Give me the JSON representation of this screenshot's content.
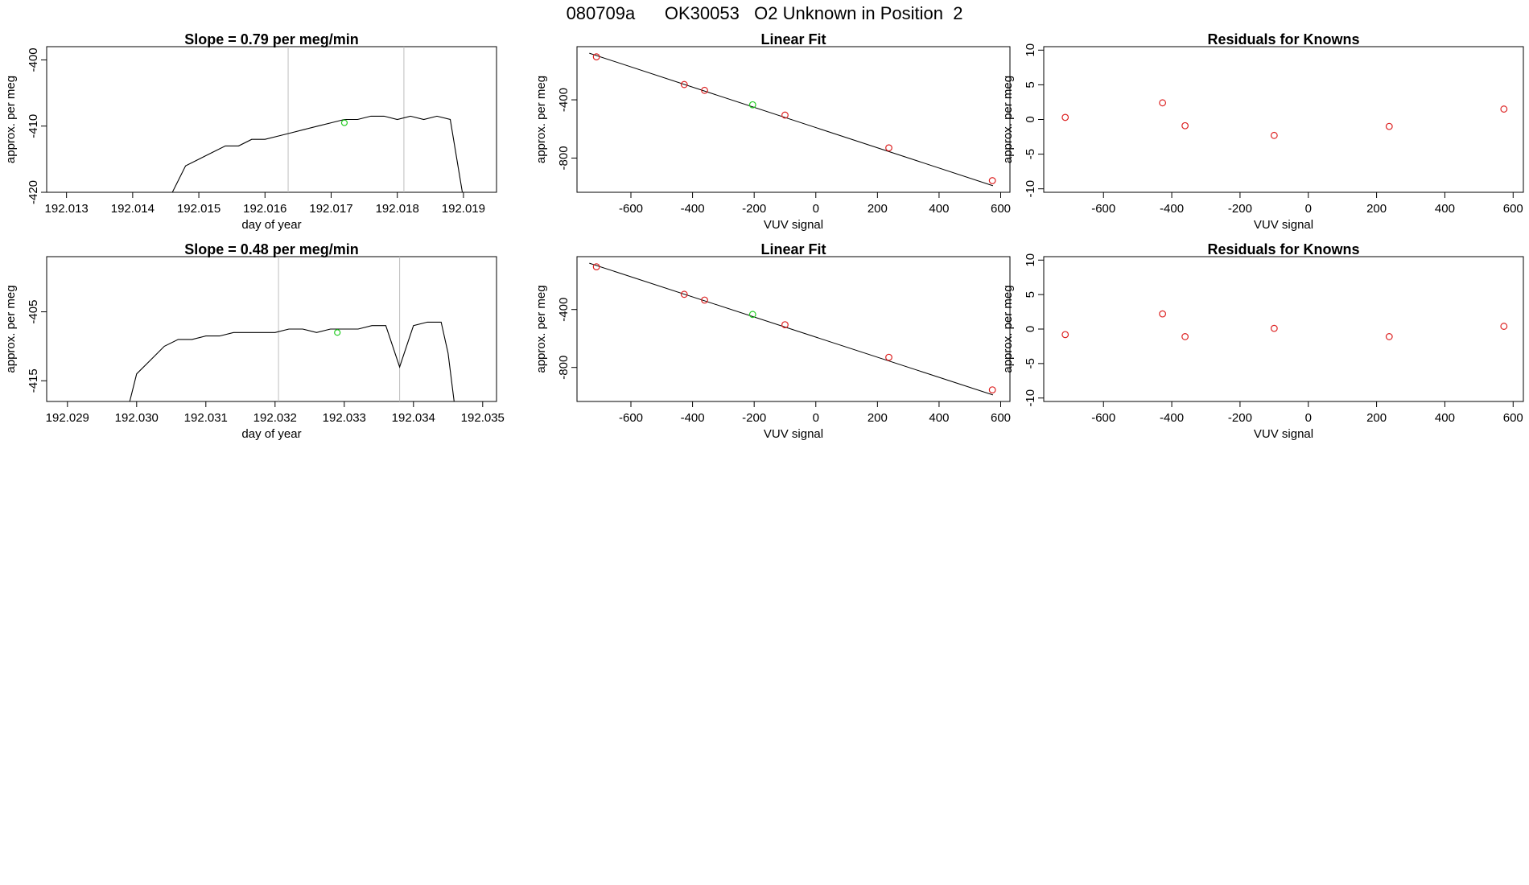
{
  "page_title": "080709a      OK30053   O2 Unknown in Position  2",
  "colors": {
    "line": "#000000",
    "frame": "#000000",
    "vline": "#bebebe",
    "known": "#dd2222",
    "unknown": "#22cc22"
  },
  "chart_data": [
    {
      "type": "line",
      "title": "Slope =  0.79  per meg/min",
      "xlabel": "day of year",
      "ylabel": "approx. per meg",
      "xlim": [
        192.0127,
        192.0195
      ],
      "ylim": [
        -420,
        -398
      ],
      "xticks": [
        192.013,
        192.014,
        192.015,
        192.016,
        192.017,
        192.018,
        192.019
      ],
      "xtick_labels": [
        "192.013",
        "192.014",
        "192.015",
        "192.016",
        "192.017",
        "192.018",
        "192.019"
      ],
      "yticks": [
        -420,
        -410,
        -400
      ],
      "ytick_labels": [
        "-420",
        "-410",
        "-400"
      ],
      "vlines": [
        192.01635,
        192.0181
      ],
      "unknown_point": {
        "x": 192.0172,
        "y": -409.5
      },
      "series": [
        {
          "x": [
            192.0146,
            192.0148,
            192.015,
            192.0152,
            192.0154,
            192.0156,
            192.0158,
            192.016,
            192.0162,
            192.0164,
            192.0166,
            192.0168,
            192.017,
            192.0172,
            192.0174,
            192.0176,
            192.0178,
            192.018,
            192.0182,
            192.0184,
            192.0186,
            192.0188,
            192.0189,
            192.019
          ],
          "y": [
            -420,
            -416,
            -415,
            -414,
            -413,
            -413,
            -412,
            -412,
            -411.5,
            -411,
            -410.5,
            -410,
            -409.5,
            -409,
            -409,
            -408.5,
            -408.5,
            -409,
            -408.5,
            -409,
            -408.5,
            -409,
            -415,
            -421
          ]
        }
      ]
    },
    {
      "type": "scatter",
      "title": "Linear Fit",
      "xlabel": "VUV signal",
      "ylabel": "approx. per meg",
      "xlim": [
        -775,
        630
      ],
      "ylim": [
        -1035,
        -35
      ],
      "xticks": [
        -600,
        -400,
        -200,
        0,
        200,
        400,
        600
      ],
      "xtick_labels": [
        "-600",
        "-400",
        "-200",
        "0",
        "200",
        "400",
        "600"
      ],
      "yticks": [
        -800,
        -400
      ],
      "ytick_labels": [
        "-800",
        "-400"
      ],
      "fit_line": {
        "x": [
          -735,
          575
        ],
        "y": [
          -80,
          -990
        ]
      },
      "knowns": {
        "x": [
          -712,
          -427,
          -361,
          -100,
          237,
          573
        ],
        "y": [
          -105,
          -295,
          -335,
          -505,
          -730,
          -955
        ]
      },
      "unknown": {
        "x": -205,
        "y": -434
      }
    },
    {
      "type": "scatter",
      "title": "Residuals for Knowns",
      "xlabel": "VUV signal",
      "ylabel": "approx. per meg",
      "xlim": [
        -775,
        630
      ],
      "ylim": [
        -10.5,
        10.5
      ],
      "xticks": [
        -600,
        -400,
        -200,
        0,
        200,
        400,
        600
      ],
      "xtick_labels": [
        "-600",
        "-400",
        "-200",
        "0",
        "200",
        "400",
        "600"
      ],
      "yticks": [
        -10,
        -5,
        0,
        5,
        10
      ],
      "ytick_labels": [
        "-10",
        "-5",
        "0",
        "5",
        "10"
      ],
      "points": {
        "x": [
          -712,
          -427,
          -361,
          -100,
          237,
          573
        ],
        "y": [
          0.3,
          2.4,
          -0.9,
          -2.3,
          -1.0,
          1.5
        ]
      }
    },
    {
      "type": "line",
      "title": "Slope =  0.48  per meg/min",
      "xlabel": "day of year",
      "ylabel": "approx. per meg",
      "xlim": [
        192.0287,
        192.0352
      ],
      "ylim": [
        -418,
        -397
      ],
      "xticks": [
        192.029,
        192.03,
        192.031,
        192.032,
        192.033,
        192.034,
        192.035
      ],
      "xtick_labels": [
        "192.029",
        "192.030",
        "192.031",
        "192.032",
        "192.033",
        "192.034",
        "192.035"
      ],
      "yticks": [
        -415,
        -405
      ],
      "ytick_labels": [
        "-415",
        "-405"
      ],
      "vlines": [
        192.03205,
        192.0338
      ],
      "unknown_point": {
        "x": 192.0329,
        "y": -408
      },
      "series": [
        {
          "x": [
            192.0299,
            192.03,
            192.0302,
            192.0304,
            192.0306,
            192.0308,
            192.031,
            192.0312,
            192.0314,
            192.0316,
            192.0318,
            192.032,
            192.0322,
            192.0324,
            192.0326,
            192.0328,
            192.033,
            192.0332,
            192.0334,
            192.0336,
            192.0338,
            192.034,
            192.0342,
            192.0344,
            192.0345,
            192.0346
          ],
          "y": [
            -418,
            -414,
            -412,
            -410,
            -409,
            -409,
            -408.5,
            -408.5,
            -408,
            -408,
            -408,
            -408,
            -407.5,
            -407.5,
            -408,
            -407.5,
            -407.5,
            -407.5,
            -407,
            -407,
            -413,
            -407,
            -406.5,
            -406.5,
            -411,
            -419
          ]
        }
      ]
    },
    {
      "type": "scatter",
      "title": "Linear Fit",
      "xlabel": "VUV signal",
      "ylabel": "approx. per meg",
      "xlim": [
        -775,
        630
      ],
      "ylim": [
        -1035,
        -35
      ],
      "xticks": [
        -600,
        -400,
        -200,
        0,
        200,
        400,
        600
      ],
      "xtick_labels": [
        "-600",
        "-400",
        "-200",
        "0",
        "200",
        "400",
        "600"
      ],
      "yticks": [
        -800,
        -400
      ],
      "ytick_labels": [
        "-800",
        "-400"
      ],
      "fit_line": {
        "x": [
          -735,
          575
        ],
        "y": [
          -80,
          -990
        ]
      },
      "knowns": {
        "x": [
          -712,
          -427,
          -361,
          -100,
          237,
          573
        ],
        "y": [
          -105,
          -295,
          -335,
          -505,
          -730,
          -955
        ]
      },
      "unknown": {
        "x": -205,
        "y": -434
      }
    },
    {
      "type": "scatter",
      "title": "Residuals for Knowns",
      "xlabel": "VUV signal",
      "ylabel": "approx. per meg",
      "xlim": [
        -775,
        630
      ],
      "ylim": [
        -10.5,
        10.5
      ],
      "xticks": [
        -600,
        -400,
        -200,
        0,
        200,
        400,
        600
      ],
      "xtick_labels": [
        "-600",
        "-400",
        "-200",
        "0",
        "200",
        "400",
        "600"
      ],
      "yticks": [
        -10,
        -5,
        0,
        5,
        10
      ],
      "ytick_labels": [
        "-10",
        "-5",
        "0",
        "5",
        "10"
      ],
      "points": {
        "x": [
          -712,
          -427,
          -361,
          -100,
          237,
          573
        ],
        "y": [
          -0.8,
          2.2,
          -1.1,
          0.1,
          -1.1,
          0.4
        ]
      }
    }
  ]
}
